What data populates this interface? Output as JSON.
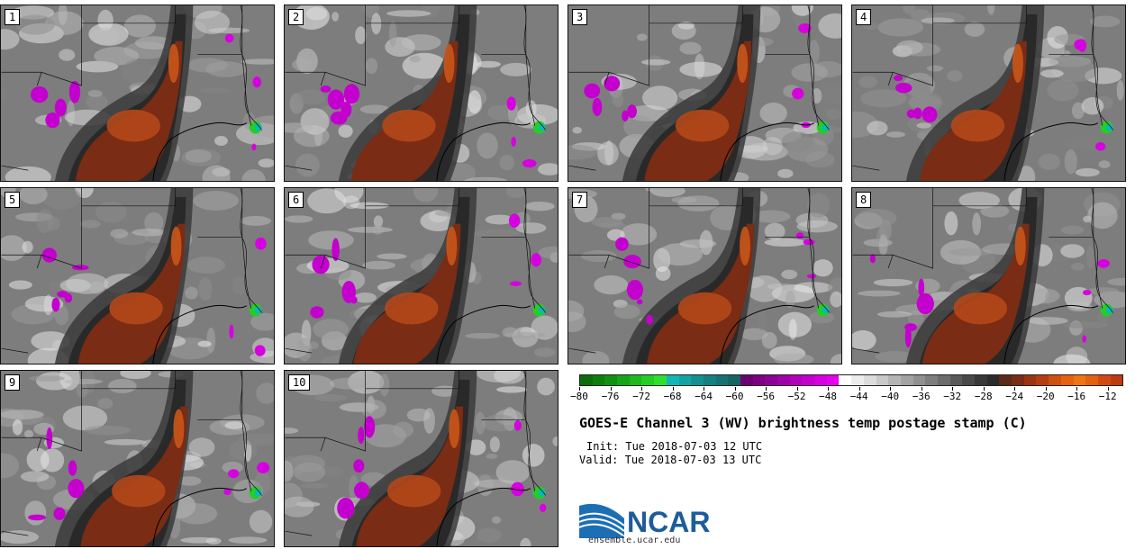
{
  "title": "GOES-E Channel 3 (WV) brightness temp postage stamp (C)",
  "init_label": "Init:",
  "init_value": "Tue 2018-07-03 12 UTC",
  "valid_label": "Valid:",
  "valid_value": "Tue 2018-07-03 13 UTC",
  "logo_text": "NCAR",
  "url": "ensemble.ucar.edu",
  "panels": [
    "1",
    "2",
    "3",
    "4",
    "5",
    "6",
    "7",
    "8",
    "9",
    "10"
  ],
  "colorbar": {
    "tick_labels": [
      "−80",
      "−76",
      "−72",
      "−68",
      "−64",
      "−60",
      "−56",
      "−52",
      "−48",
      "−44",
      "−40",
      "−36",
      "−32",
      "−28",
      "−24",
      "−20",
      "−16",
      "−12"
    ],
    "tick_values": [
      -80,
      -76,
      -72,
      -68,
      -64,
      -60,
      -56,
      -52,
      -48,
      -44,
      -40,
      -36,
      -32,
      -28,
      -24,
      -20,
      -16,
      -12
    ],
    "min": -80,
    "max": -10,
    "colors": [
      "#0a6d0a",
      "#0e7f0e",
      "#129012",
      "#17a417",
      "#1db91d",
      "#23cf23",
      "#2de02d",
      "#10b6b6",
      "#12a4a4",
      "#139090",
      "#148080",
      "#157272",
      "#166464",
      "#6b0070",
      "#7d0083",
      "#8e0095",
      "#a000a8",
      "#b200bb",
      "#c400ce",
      "#d600e0",
      "#e600ef",
      "#ffffff",
      "#ececec",
      "#dcdcdc",
      "#c8c8c8",
      "#b4b4b4",
      "#a2a2a2",
      "#909090",
      "#7e7e7e",
      "#6c6c6c",
      "#5a5a5a",
      "#494949",
      "#383838",
      "#2b2b2b",
      "#5a2a1a",
      "#7a2c14",
      "#9a3412",
      "#b43e10",
      "#d0500e",
      "#e86010",
      "#f07512",
      "#e2620f",
      "#d24a10",
      "#c03a10"
    ]
  }
}
